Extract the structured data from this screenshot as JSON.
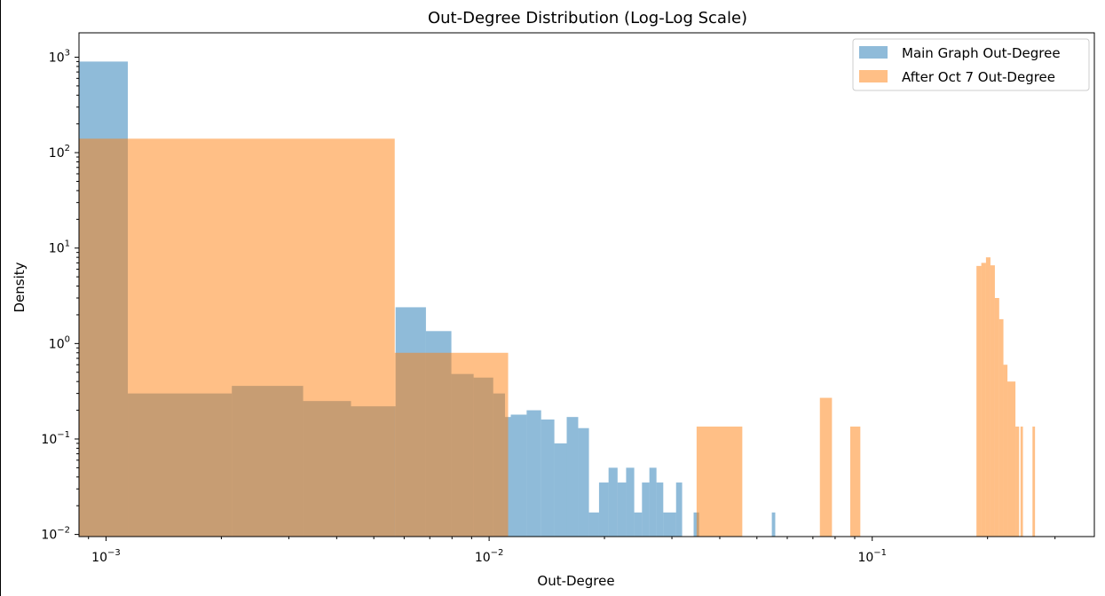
{
  "chart_data": {
    "type": "histogram",
    "title": "Out-Degree Distribution (Log-Log Scale)",
    "xlabel": "Out-Degree",
    "ylabel": "Density",
    "xscale": "log",
    "yscale": "log",
    "xlim": [
      0.00085,
      0.38
    ],
    "ylim": [
      0.0095,
      1800
    ],
    "x_ticks": [
      {
        "value": 0.001,
        "base": "10",
        "exp": "−3"
      },
      {
        "value": 0.01,
        "base": "10",
        "exp": "−2"
      },
      {
        "value": 0.1,
        "base": "10",
        "exp": "−1"
      }
    ],
    "y_ticks": [
      {
        "value": 0.01,
        "base": "10",
        "exp": "−2"
      },
      {
        "value": 0.1,
        "base": "10",
        "exp": "−1"
      },
      {
        "value": 1,
        "base": "10",
        "exp": "0"
      },
      {
        "value": 10,
        "base": "10",
        "exp": "1"
      },
      {
        "value": 100,
        "base": "10",
        "exp": "2"
      },
      {
        "value": 1000,
        "base": "10",
        "exp": "3"
      }
    ],
    "grid": false,
    "legend_position": "top-right",
    "series": [
      {
        "name": "Main Graph Out-Degree",
        "color": "#1f77b4",
        "alpha": 0.5,
        "bins": [
          {
            "x0": 0.00085,
            "x1": 0.00114,
            "y": 900
          },
          {
            "x0": 0.00114,
            "x1": 0.00213,
            "y": 0.3
          },
          {
            "x0": 0.00213,
            "x1": 0.00327,
            "y": 0.36
          },
          {
            "x0": 0.00327,
            "x1": 0.00436,
            "y": 0.25
          },
          {
            "x0": 0.00436,
            "x1": 0.0057,
            "y": 0.22
          },
          {
            "x0": 0.0057,
            "x1": 0.00684,
            "y": 2.4
          },
          {
            "x0": 0.00684,
            "x1": 0.00797,
            "y": 1.35
          },
          {
            "x0": 0.00797,
            "x1": 0.00911,
            "y": 0.48
          },
          {
            "x0": 0.00911,
            "x1": 0.01025,
            "y": 0.44
          },
          {
            "x0": 0.01025,
            "x1": 0.011,
            "y": 0.3
          },
          {
            "x0": 0.011,
            "x1": 0.01139,
            "y": 0.17
          },
          {
            "x0": 0.01139,
            "x1": 0.01253,
            "y": 0.18
          },
          {
            "x0": 0.01253,
            "x1": 0.01367,
            "y": 0.2
          },
          {
            "x0": 0.01367,
            "x1": 0.0148,
            "y": 0.16
          },
          {
            "x0": 0.0148,
            "x1": 0.01594,
            "y": 0.09
          },
          {
            "x0": 0.01594,
            "x1": 0.01708,
            "y": 0.17
          },
          {
            "x0": 0.01708,
            "x1": 0.01822,
            "y": 0.13
          },
          {
            "x0": 0.01822,
            "x1": 0.01936,
            "y": 0.017
          },
          {
            "x0": 0.01936,
            "x1": 0.0205,
            "y": 0.035
          },
          {
            "x0": 0.0205,
            "x1": 0.02164,
            "y": 0.05
          },
          {
            "x0": 0.02164,
            "x1": 0.02278,
            "y": 0.035
          },
          {
            "x0": 0.02278,
            "x1": 0.02392,
            "y": 0.05
          },
          {
            "x0": 0.02392,
            "x1": 0.02506,
            "y": 0.017
          },
          {
            "x0": 0.02506,
            "x1": 0.0262,
            "y": 0.035
          },
          {
            "x0": 0.0262,
            "x1": 0.02734,
            "y": 0.05
          },
          {
            "x0": 0.02734,
            "x1": 0.02848,
            "y": 0.035
          },
          {
            "x0": 0.02848,
            "x1": 0.03076,
            "y": 0.017
          },
          {
            "x0": 0.03076,
            "x1": 0.0319,
            "y": 0.035
          },
          {
            "x0": 0.03418,
            "x1": 0.03532,
            "y": 0.017
          },
          {
            "x0": 0.05469,
            "x1": 0.05583,
            "y": 0.017
          }
        ]
      },
      {
        "name": "After Oct 7 Out-Degree",
        "color": "#ff7f0e",
        "alpha": 0.5,
        "bins": [
          {
            "x0": 0.00085,
            "x1": 0.00567,
            "y": 140
          },
          {
            "x0": 0.00567,
            "x1": 0.01121,
            "y": 0.8
          },
          {
            "x0": 0.0348,
            "x1": 0.0458,
            "y": 0.135
          },
          {
            "x0": 0.073,
            "x1": 0.0785,
            "y": 0.27
          },
          {
            "x0": 0.0876,
            "x1": 0.0931,
            "y": 0.135
          },
          {
            "x0": 0.1871,
            "x1": 0.1926,
            "y": 6.5
          },
          {
            "x0": 0.1926,
            "x1": 0.1981,
            "y": 7.0
          },
          {
            "x0": 0.1981,
            "x1": 0.2035,
            "y": 8.0
          },
          {
            "x0": 0.2035,
            "x1": 0.209,
            "y": 6.6
          },
          {
            "x0": 0.209,
            "x1": 0.2145,
            "y": 3.0
          },
          {
            "x0": 0.2145,
            "x1": 0.22,
            "y": 1.8
          },
          {
            "x0": 0.22,
            "x1": 0.2254,
            "y": 0.6
          },
          {
            "x0": 0.2254,
            "x1": 0.2365,
            "y": 0.4
          },
          {
            "x0": 0.2365,
            "x1": 0.2418,
            "y": 0.135
          },
          {
            "x0": 0.2438,
            "x1": 0.2474,
            "y": 0.135
          },
          {
            "x0": 0.262,
            "x1": 0.266,
            "y": 0.135
          }
        ]
      }
    ]
  }
}
